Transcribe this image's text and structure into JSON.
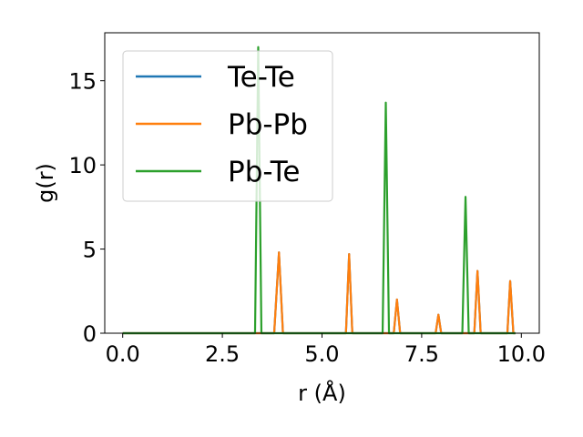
{
  "chart_data": {
    "type": "line",
    "xlabel": "r (Å)",
    "ylabel": "g(r)",
    "xlim": [
      -0.45,
      10.45
    ],
    "ylim": [
      0,
      17.85
    ],
    "xticks": [
      0.0,
      2.5,
      5.0,
      7.5,
      10.0
    ],
    "xtick_labels": [
      "0.0",
      "2.5",
      "5.0",
      "7.5",
      "10.0"
    ],
    "yticks": [
      0,
      5,
      10,
      15
    ],
    "ytick_labels": [
      "0",
      "5",
      "10",
      "15"
    ],
    "grid": false,
    "legend_position": "top-left",
    "series": [
      {
        "name": "Te-Te",
        "color": "#1f77b4",
        "x": [
          0.0,
          3.8,
          3.92,
          4.02,
          5.6,
          5.68,
          5.76,
          6.8,
          6.88,
          6.96,
          7.85,
          7.92,
          7.99,
          8.82,
          8.9,
          8.98,
          9.65,
          9.72,
          9.8,
          9.85
        ],
        "y": [
          0,
          0,
          4.8,
          0,
          0,
          4.7,
          0,
          0,
          2.0,
          0,
          0,
          1.1,
          0,
          0,
          3.7,
          0,
          0,
          3.1,
          0,
          0
        ]
      },
      {
        "name": "Pb-Pb",
        "color": "#ff7f0e",
        "x": [
          0.0,
          3.8,
          3.92,
          4.02,
          5.6,
          5.68,
          5.76,
          6.8,
          6.88,
          6.96,
          7.85,
          7.92,
          7.99,
          8.82,
          8.9,
          8.98,
          9.65,
          9.72,
          9.8,
          9.85
        ],
        "y": [
          0,
          0,
          4.8,
          0,
          0,
          4.7,
          0,
          0,
          2.0,
          0,
          0,
          1.1,
          0,
          0,
          3.7,
          0,
          0,
          3.1,
          0,
          0
        ]
      },
      {
        "name": "Pb-Te",
        "color": "#2ca02c",
        "x": [
          0.0,
          3.32,
          3.4,
          3.48,
          6.52,
          6.6,
          6.68,
          8.52,
          8.6,
          8.68,
          9.85
        ],
        "y": [
          0,
          0,
          17.0,
          0,
          0,
          13.7,
          0,
          0,
          8.1,
          0,
          0
        ]
      }
    ]
  }
}
